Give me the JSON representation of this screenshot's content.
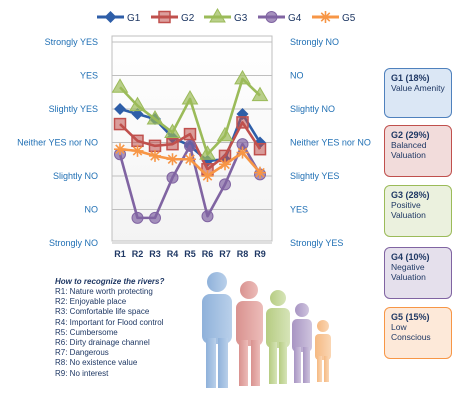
{
  "chart_data": {
    "type": "line",
    "categories": [
      "R1",
      "R2",
      "R3",
      "R4",
      "R5",
      "R6",
      "R7",
      "R8",
      "R9"
    ],
    "left_axis_labels": [
      "Strongly YES",
      "YES",
      "Slightly YES",
      "Neither YES nor NO",
      "Slightly NO",
      "NO",
      "Strongly NO"
    ],
    "right_axis_labels": [
      "Strongly NO",
      "NO",
      "Slightly NO",
      "Neither YES nor NO",
      "Slightly YES",
      "YES",
      "Strongly YES"
    ],
    "ylim": [
      -3,
      3
    ],
    "grid": true,
    "legend_position": "top",
    "series": [
      {
        "name": "G1",
        "color": "#2e5ea8",
        "marker": "diamond",
        "values": [
          1.0,
          0.85,
          0.7,
          0.15,
          -0.1,
          -0.55,
          -0.5,
          0.85,
          0.0
        ]
      },
      {
        "name": "G2",
        "color": "#c0504d",
        "marker": "square",
        "values": [
          0.55,
          0.05,
          -0.1,
          -0.05,
          0.25,
          -0.8,
          -0.4,
          0.6,
          -0.2
        ]
      },
      {
        "name": "G3",
        "color": "#9bbb59",
        "marker": "triangle",
        "values": [
          1.65,
          1.1,
          0.7,
          0.3,
          1.3,
          -0.35,
          0.2,
          1.9,
          1.4
        ]
      },
      {
        "name": "G4",
        "color": "#8064a2",
        "marker": "circle",
        "values": [
          -0.35,
          -2.25,
          -2.25,
          -1.05,
          -0.1,
          -2.2,
          -1.25,
          -0.05,
          -0.95
        ]
      },
      {
        "name": "G5",
        "color": "#f79646",
        "marker": "star",
        "values": [
          -0.2,
          -0.25,
          -0.4,
          -0.5,
          -0.5,
          -1.0,
          -0.65,
          -0.3,
          -0.9
        ]
      }
    ]
  },
  "groups": [
    {
      "title": "G1 (18%)",
      "desc": "Value Amenity",
      "bg": "#dbe7f5",
      "border": "#4f81bd"
    },
    {
      "title": "G2 (29%)",
      "desc": "Balanced Valuation",
      "bg": "#f2dcdb",
      "border": "#c0504d"
    },
    {
      "title": "G3 (28%)",
      "desc": "Positive Valuation",
      "bg": "#ebf1de",
      "border": "#9bbb59"
    },
    {
      "title": "G4 (10%)",
      "desc": "Negative Valuation",
      "bg": "#e5e0ec",
      "border": "#8064a2"
    },
    {
      "title": "G5 (15%)",
      "desc": "Low Conscious",
      "bg": "#fde9d9",
      "border": "#f79646"
    }
  ],
  "rivers": {
    "title": "How to recognize the rivers?",
    "items": [
      "R1: Nature worth protecting",
      "R2: Enjoyable place",
      "R3: Comfortable life space",
      "R4: Important for Flood control",
      "R5: Cumbersome",
      "R6: Dirty drainage channel",
      "R7: Dangerous",
      "R8: No existence value",
      "R9: No interest"
    ]
  }
}
